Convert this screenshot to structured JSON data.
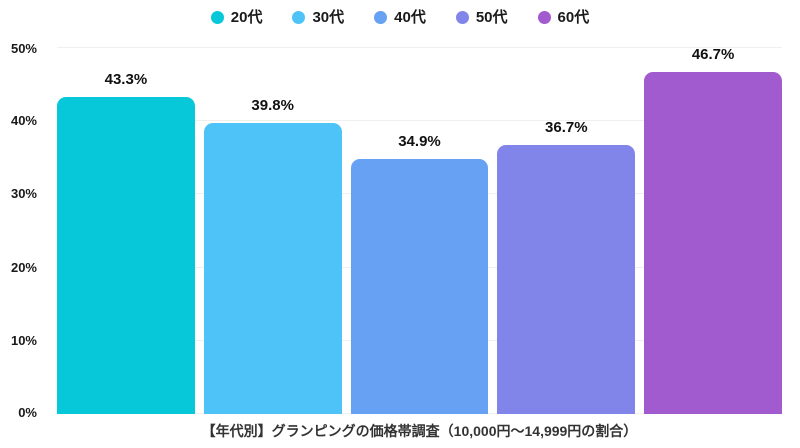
{
  "chart_data": {
    "type": "bar",
    "categories": [
      "20代",
      "30代",
      "40代",
      "50代",
      "60代"
    ],
    "values": [
      43.3,
      39.8,
      34.9,
      36.7,
      46.7
    ],
    "value_labels": [
      "43.3%",
      "39.8%",
      "34.9%",
      "36.7%",
      "46.7%"
    ],
    "colors": [
      "#06c8d9",
      "#4dc3f8",
      "#66a1f3",
      "#8185e9",
      "#a15bce"
    ],
    "title": "【年代別】グランピングの価格帯調査（10,000円〜14,999円の割合）",
    "xlabel": "",
    "ylabel": "",
    "ylim": [
      0,
      50
    ],
    "yticks": [
      "0%",
      "10%",
      "20%",
      "30%",
      "40%",
      "50%"
    ],
    "grid": "horizontal",
    "legend_position": "top",
    "background_color": "#ffffff",
    "gridline_color": "#f0f0f0"
  }
}
